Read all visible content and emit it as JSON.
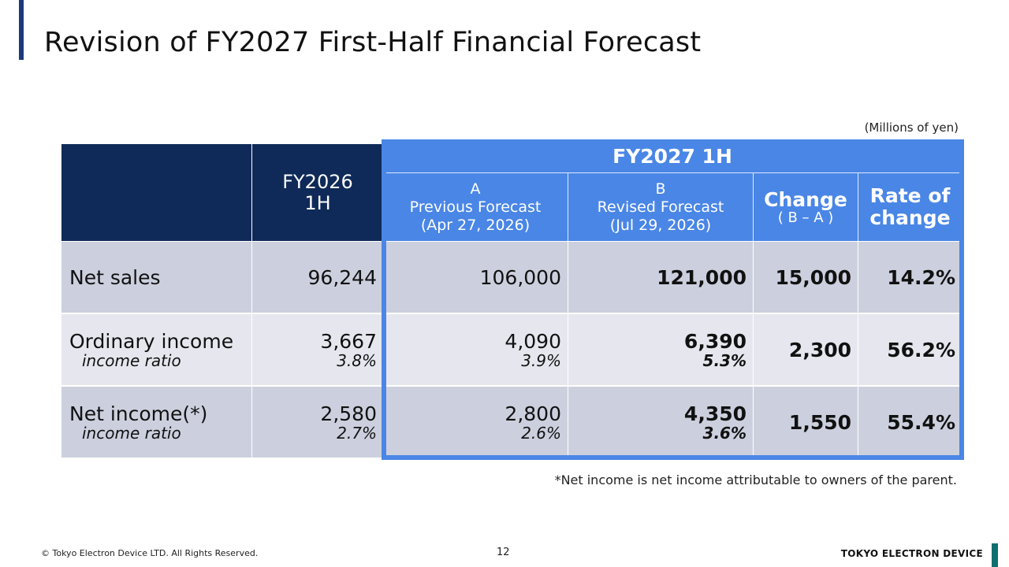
{
  "page": {
    "title": "Revision of FY2027 First-Half Financial Forecast",
    "unit": "(Millions of yen)",
    "note": "*Net income is net income attributable to owners of the parent."
  },
  "table": {
    "col_prev_year": "FY2026\n1H",
    "group_header": "FY2027 1H",
    "col_a": "A\nPrevious Forecast\n(Apr 27, 2026)",
    "col_b": "B\nRevised Forecast\n(Jul 29, 2026)",
    "col_change_title": "Change",
    "col_change_sub": "( B – A )",
    "col_rate": "Rate of\nchange",
    "rows": [
      {
        "label": "Net sales",
        "sub": "",
        "fy2026": "96,244",
        "fy2026_sub": "",
        "a": "106,000",
        "a_sub": "",
        "b": "121,000",
        "b_sub": "",
        "change": "15,000",
        "rate": "14.2%"
      },
      {
        "label": "Ordinary income",
        "sub": "income ratio",
        "fy2026": "3,667",
        "fy2026_sub": "3.8%",
        "a": "4,090",
        "a_sub": "3.9%",
        "b": "6,390",
        "b_sub": "5.3%",
        "change": "2,300",
        "rate": "56.2%"
      },
      {
        "label": "Net income(*)",
        "sub": "income ratio",
        "fy2026": "2,580",
        "fy2026_sub": "2.7%",
        "a": "2,800",
        "a_sub": "2.6%",
        "b": "4,350",
        "b_sub": "3.6%",
        "change": "1,550",
        "rate": "55.4%"
      }
    ]
  },
  "footer": {
    "copyright": "© Tokyo Electron Device LTD. All Rights Reserved.",
    "page_number": "12",
    "brand": "TOKYO ELECTRON DEVICE"
  },
  "colors": {
    "dark_header": "#0f2a58",
    "blue_header": "#4a86e6",
    "row_a": "#ccd0de",
    "row_b": "#e6e7ee",
    "footer_accent": "#0f6e6e"
  }
}
